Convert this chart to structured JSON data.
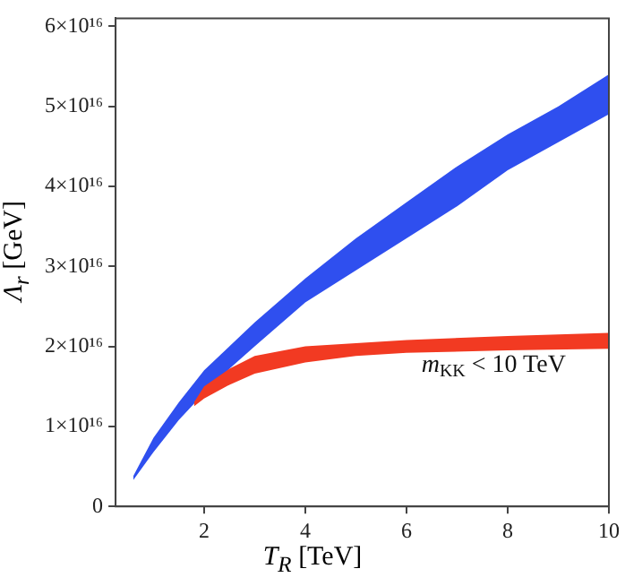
{
  "chart_data": {
    "type": "area",
    "xlabel": "T$_{R}$ [TeV]",
    "ylabel": "Λ$_{r}$ [GeV]",
    "xlim": [
      0.25,
      10
    ],
    "ylim": [
      0,
      6.1e+16
    ],
    "xticks": [
      2,
      4,
      6,
      8,
      10
    ],
    "yticks": [
      0,
      {
        "value": 1e+16,
        "label": "1×10¹⁶"
      },
      {
        "value": 2e+16,
        "label": "2×10¹⁶"
      },
      {
        "value": 3e+16,
        "label": "3×10¹⁶"
      },
      {
        "value": 4e+16,
        "label": "4×10¹⁶"
      },
      {
        "value": 5e+16,
        "label": "5×10¹⁶"
      },
      {
        "value": 6e+16,
        "label": "6×10¹⁶"
      }
    ],
    "series": [
      {
        "color": "#2f4fef",
        "x": [
          0.6,
          1,
          1.5,
          2,
          2.5,
          3,
          4,
          5,
          6,
          7,
          8,
          9,
          10
        ],
        "values": [
          null,
          null,
          null,
          null,
          null,
          null,
          null,
          null,
          null,
          null,
          null,
          null,
          null
        ],
        "upper": [
          3800000000000000.0,
          8600000000000000.0,
          1.3e+16,
          1.7e+16,
          2e+16,
          2.3e+16,
          2.85e+16,
          3.35e+16,
          3.8e+16,
          4.25e+16,
          4.65e+16,
          5e+16,
          5.4e+16
        ],
        "lower": [
          3300000000000000.0,
          6800000000000000.0,
          1.08e+16,
          1.42e+16,
          1.72e+16,
          2e+16,
          2.55e+16,
          2.95e+16,
          3.35e+16,
          3.75e+16,
          4.2e+16,
          4.55e+16,
          4.9e+16
        ]
      },
      {
        "color": "#f23a22",
        "x": [
          1.8,
          2,
          2.5,
          3,
          4,
          5,
          6,
          8,
          10
        ],
        "values": [
          null,
          null,
          null,
          null,
          null,
          null,
          null,
          null,
          null
        ],
        "upper": [
          1.3e+16,
          1.5e+16,
          1.72e+16,
          1.88e+16,
          2e+16,
          2.04e+16,
          2.08e+16,
          2.13e+16,
          2.17e+16
        ],
        "lower": [
          1.25e+16,
          1.35e+16,
          1.52e+16,
          1.66e+16,
          1.8e+16,
          1.88e+16,
          1.92e+16,
          1.95e+16,
          1.97e+16
        ]
      }
    ],
    "annotations": [
      "m$_{KK}$ < 10 TeV"
    ],
    "grid": false,
    "legend": false
  }
}
